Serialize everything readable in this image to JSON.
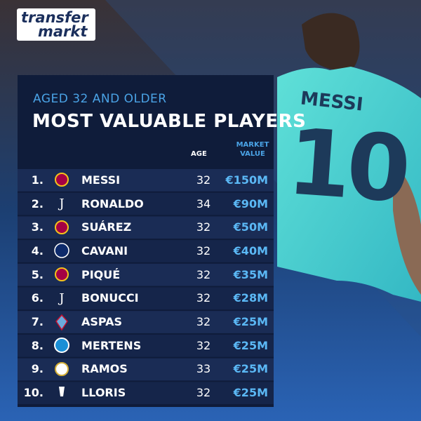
{
  "logo": {
    "line1": "transfer",
    "line2": "markt"
  },
  "jersey": {
    "name": "MESSI",
    "number": "10"
  },
  "table": {
    "subtitle": "AGED 32 AND OLDER",
    "title": "MOST VALUABLE PLAYERS",
    "headers": {
      "age": "AGE",
      "value": "MARKET VALUE"
    },
    "rows": [
      {
        "rank": "1.",
        "name": "MESSI",
        "age": 32,
        "value": "€150M"
      },
      {
        "rank": "2.",
        "name": "RONALDO",
        "age": 34,
        "value": "€90M"
      },
      {
        "rank": "3.",
        "name": "SUÁREZ",
        "age": 32,
        "value": "€50M"
      },
      {
        "rank": "4.",
        "name": "CAVANI",
        "age": 32,
        "value": "€40M"
      },
      {
        "rank": "5.",
        "name": "PIQUÉ",
        "age": 32,
        "value": "€35M"
      },
      {
        "rank": "6.",
        "name": "BONUCCI",
        "age": 32,
        "value": "€28M"
      },
      {
        "rank": "7.",
        "name": "ASPAS",
        "age": 32,
        "value": "€25M"
      },
      {
        "rank": "8.",
        "name": "MERTENS",
        "age": 32,
        "value": "€25M"
      },
      {
        "rank": "9.",
        "name": "RAMOS",
        "age": 33,
        "value": "€25M"
      },
      {
        "rank": "10.",
        "name": "LLORIS",
        "age": 32,
        "value": "€25M"
      }
    ]
  }
}
